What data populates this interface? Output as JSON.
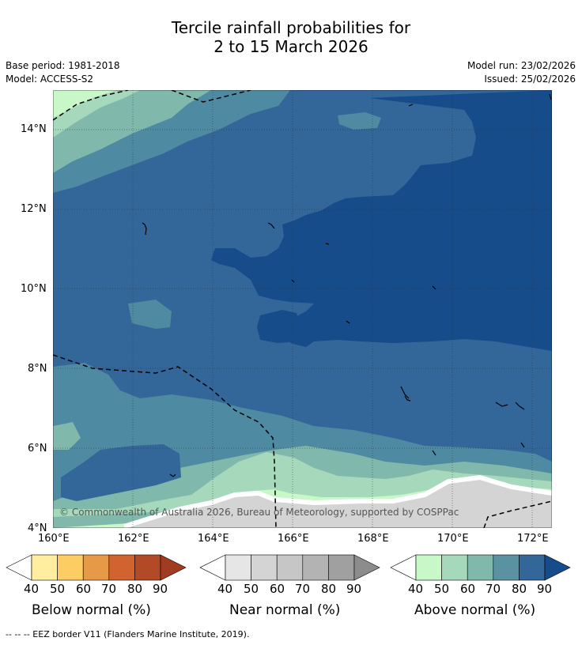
{
  "title": {
    "line1": "Tercile rainfall probabilities for",
    "line2": "2 to 15 March 2026"
  },
  "meta": {
    "base_period": "Base period: 1981-2018",
    "model": "Model: ACCESS-S2",
    "model_run": "Model run: 23/02/2026",
    "issued": "Issued: 25/02/2026"
  },
  "map": {
    "lat_labels": [
      "14°N",
      "12°N",
      "10°N",
      "8°N",
      "6°N",
      "4°N"
    ],
    "lon_labels": [
      "160°E",
      "162°E",
      "164°E",
      "166°E",
      "168°E",
      "170°E",
      "172°E"
    ],
    "copyright": "© Commonwealth of Australia 2026, Bureau of Meteorology, supported by COSPPac"
  },
  "legend": {
    "below": {
      "label": "Below normal (%)",
      "ticks": [
        "40",
        "50",
        "60",
        "70",
        "80",
        "90"
      ],
      "colors": [
        "#ffeea0",
        "#fdcd64",
        "#e69a48",
        "#d0632f",
        "#b24a28",
        "#a23c20"
      ]
    },
    "near": {
      "label": "Near normal (%)",
      "ticks": [
        "40",
        "50",
        "60",
        "70",
        "80",
        "90"
      ],
      "colors": [
        "#e6e6e6",
        "#d4d4d4",
        "#c6c6c6",
        "#b3b3b3",
        "#a0a0a0",
        "#8c8c8c"
      ]
    },
    "above": {
      "label": "Above normal (%)",
      "ticks": [
        "40",
        "50",
        "60",
        "70",
        "80",
        "90"
      ],
      "colors": [
        "#c8f7c8",
        "#a6d9bc",
        "#80b8ac",
        "#5a92a2",
        "#336699",
        "#164c8a"
      ]
    }
  },
  "footer": {
    "eez_note": "-- -- -- EEZ border V11 (Flanders Marine Institute, 2019)."
  }
}
